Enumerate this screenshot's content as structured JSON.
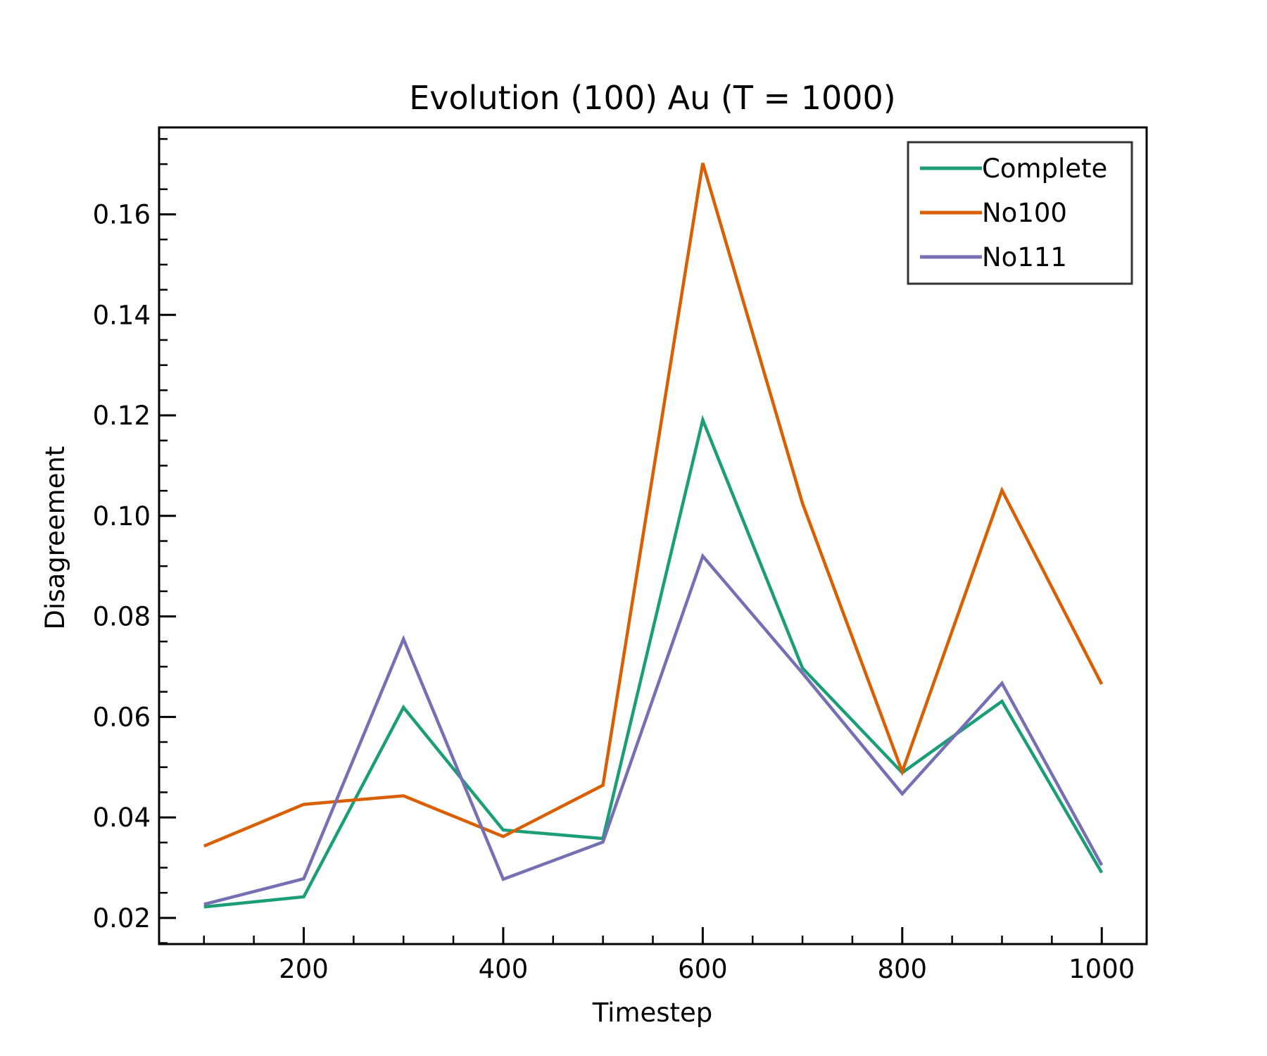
{
  "chart_data": {
    "type": "line",
    "title": "Evolution (100) Au (T = 1000)",
    "xlabel": "Timestep",
    "ylabel": "Disagreement",
    "x": [
      100,
      200,
      300,
      400,
      500,
      600,
      700,
      800,
      900,
      1000
    ],
    "series": [
      {
        "name": "Complete",
        "color": "#1b9e77",
        "values": [
          0.0222,
          0.0242,
          0.0619,
          0.0375,
          0.0358,
          0.1191,
          0.0697,
          0.0489,
          0.0631,
          0.029
        ]
      },
      {
        "name": "No100",
        "color": "#d95f02",
        "values": [
          0.0343,
          0.0426,
          0.0443,
          0.0362,
          0.0464,
          0.1702,
          0.1025,
          0.0491,
          0.1051,
          0.0665
        ]
      },
      {
        "name": "No111",
        "color": "#7570b3",
        "values": [
          0.0227,
          0.0278,
          0.0755,
          0.0277,
          0.0351,
          0.092,
          0.0687,
          0.0447,
          0.0667,
          0.0305
        ]
      }
    ],
    "xlim": [
      55,
      1045
    ],
    "ylim": [
      0.0148,
      0.1773
    ],
    "xticks": [
      200,
      400,
      600,
      800,
      1000
    ],
    "xtick_labels": [
      "200",
      "400",
      "600",
      "800",
      "1000"
    ],
    "yticks": [
      0.02,
      0.04,
      0.06,
      0.08,
      0.1,
      0.12,
      0.14,
      0.16
    ],
    "ytick_labels": [
      "0.02",
      "0.04",
      "0.06",
      "0.08",
      "0.10",
      "0.12",
      "0.14",
      "0.16"
    ],
    "grid": false,
    "legend": "top-right"
  }
}
